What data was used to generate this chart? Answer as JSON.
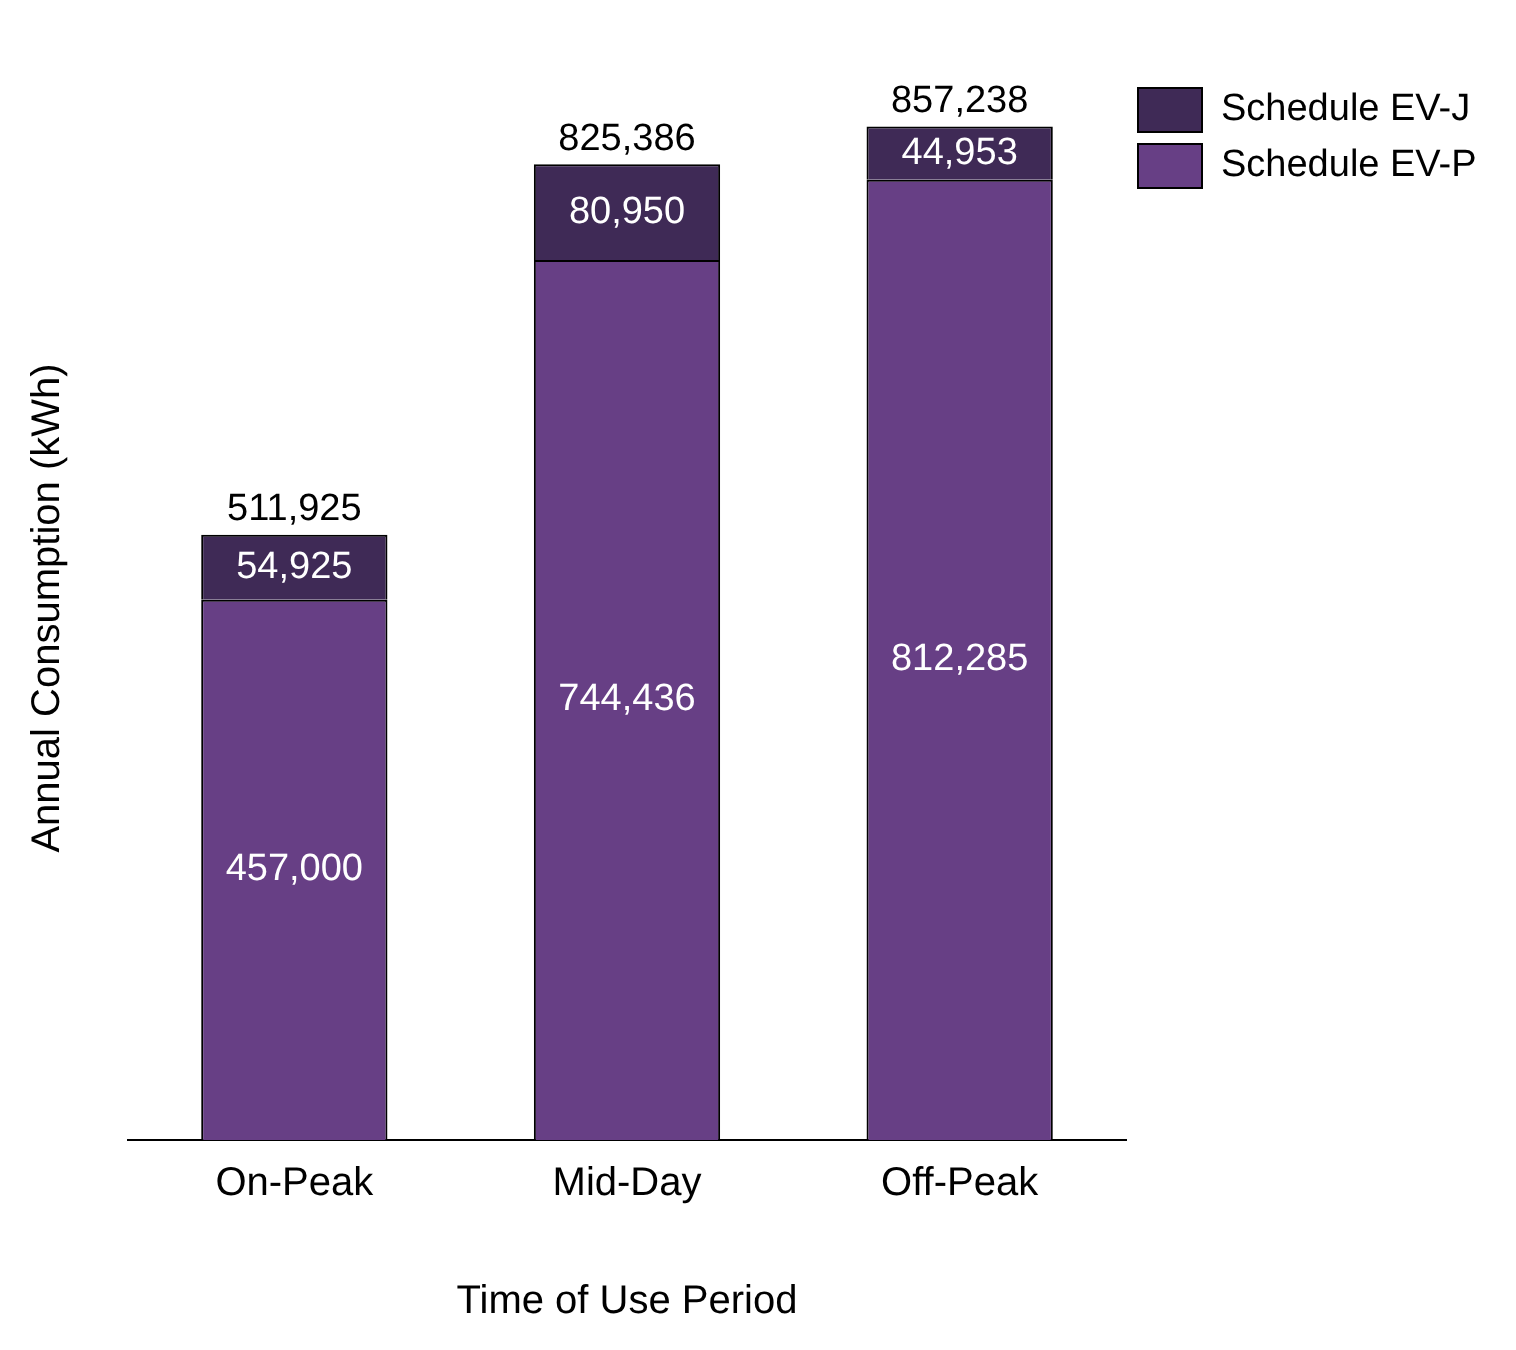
{
  "chart_data": {
    "type": "bar",
    "xlabel": "Time of Use Period",
    "ylabel": "Annual Consumption (kWh)",
    "categories": [
      "On-Peak",
      "Mid-Day",
      "Off-Peak"
    ],
    "stacked": true,
    "series": [
      {
        "name": "Schedule EV-P",
        "color": "#673f85",
        "values": [
          457000,
          744436,
          812285
        ],
        "value_labels": [
          "457,000",
          "744,436",
          "812,285"
        ]
      },
      {
        "name": "Schedule EV-J",
        "color": "#3f2a56",
        "values": [
          54925,
          80950,
          44953
        ],
        "value_labels": [
          "54,925",
          "80,950",
          "44,953"
        ]
      }
    ],
    "totals": [
      "511,925",
      "825,386",
      "857,238"
    ],
    "legend": "top right",
    "tick_labels": "x",
    "grid": false
  }
}
